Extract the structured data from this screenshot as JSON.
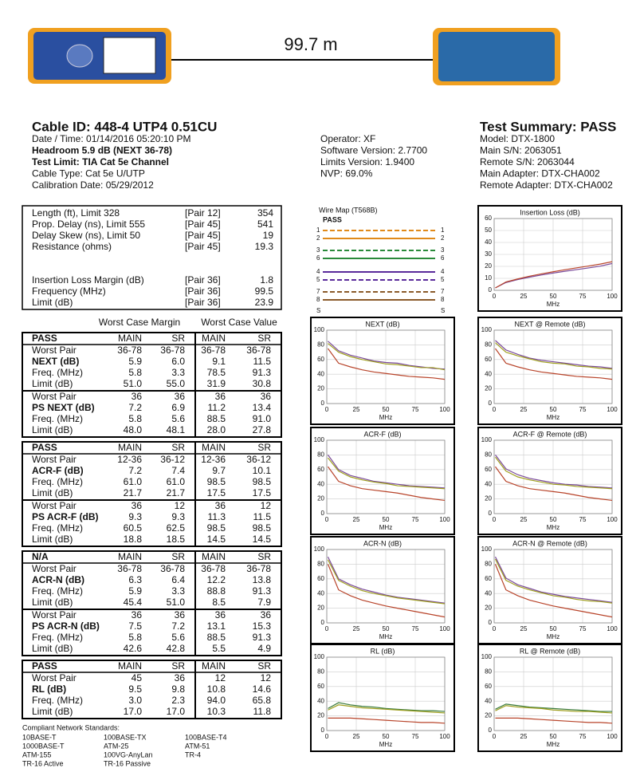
{
  "header": {
    "distance": "99.7 m",
    "cable_id": "Cable ID: 448-4 UTP4 0.51CU",
    "left_lines": [
      "Date / Time: 01/14/2016 05:20:10 PM",
      "Headroom 5.9 dB (NEXT 36-78)",
      "Test Limit: TIA Cat 5e Channel",
      "Cable Type: Cat 5e U/UTP",
      "Calibration Date: 05/29/2012"
    ],
    "middle_lines": [
      "Operator: XF",
      "Software Version: 2.7700",
      "Limits Version: 1.9400",
      "NVP: 69.0%"
    ],
    "summary_title": "Test Summary: PASS",
    "right_lines": [
      "Model: DTX-1800",
      "Main S/N: 2063051",
      "Remote S/N: 2063044",
      "Main Adapter: DTX-CHA002",
      "Remote Adapter: DTX-CHA002"
    ]
  },
  "length_table": {
    "groups": [
      [
        [
          "Length (ft), Limit 328",
          "[Pair 12]",
          "354"
        ],
        [
          "Prop. Delay (ns), Limit 555",
          "[Pair 45]",
          "541"
        ],
        [
          "Delay Skew (ns), Limit 50",
          "[Pair 45]",
          "19"
        ],
        [
          "Resistance (ohms)",
          "[Pair 45]",
          "19.3"
        ]
      ],
      [
        [
          "Insertion Loss Margin (dB)",
          "[Pair 36]",
          "1.8"
        ],
        [
          "Frequency (MHz)",
          "[Pair 36]",
          "99.5"
        ],
        [
          "Limit (dB)",
          "[Pair 36]",
          "23.9"
        ]
      ]
    ]
  },
  "wire_map": {
    "title": "Wire Map (T568B)",
    "status": "PASS",
    "pins": [
      "1",
      "2",
      "3",
      "6",
      "4",
      "5",
      "7",
      "8",
      "S"
    ]
  },
  "worst_case": {
    "headers": [
      "Worst Case Margin",
      "Worst Case Value"
    ],
    "columns": [
      "MAIN",
      "SR",
      "MAIN",
      "SR"
    ],
    "sections": [
      {
        "status": "PASS",
        "groups": [
          [
            [
              "Worst Pair",
              "36-78",
              "36-78",
              "36-78",
              "36-78"
            ],
            [
              "NEXT (dB)",
              "5.9",
              "6.0",
              "9.1",
              "11.5"
            ],
            [
              "Freq. (MHz)",
              "5.8",
              "3.3",
              "78.5",
              "91.3"
            ],
            [
              "Limit (dB)",
              "51.0",
              "55.0",
              "31.9",
              "30.8"
            ]
          ],
          [
            [
              "Worst Pair",
              "36",
              "36",
              "36",
              "36"
            ],
            [
              "PS NEXT (dB)",
              "7.2",
              "6.9",
              "11.2",
              "13.4"
            ],
            [
              "Freq. (MHz)",
              "5.8",
              "5.6",
              "88.5",
              "91.0"
            ],
            [
              "Limit (dB)",
              "48.0",
              "48.1",
              "28.0",
              "27.8"
            ]
          ]
        ]
      },
      {
        "status": "PASS",
        "groups": [
          [
            [
              "Worst Pair",
              "12-36",
              "36-12",
              "12-36",
              "36-12"
            ],
            [
              "ACR-F (dB)",
              "7.2",
              "7.4",
              "9.7",
              "10.1"
            ],
            [
              "Freq. (MHz)",
              "61.0",
              "61.0",
              "98.5",
              "98.5"
            ],
            [
              "Limit (dB)",
              "21.7",
              "21.7",
              "17.5",
              "17.5"
            ]
          ],
          [
            [
              "Worst Pair",
              "36",
              "12",
              "36",
              "12"
            ],
            [
              "PS ACR-F (dB)",
              "9.3",
              "9.3",
              "11.3",
              "11.5"
            ],
            [
              "Freq. (MHz)",
              "60.5",
              "62.5",
              "98.5",
              "98.5"
            ],
            [
              "Limit (dB)",
              "18.8",
              "18.5",
              "14.5",
              "14.5"
            ]
          ]
        ]
      },
      {
        "status": "N/A",
        "groups": [
          [
            [
              "Worst Pair",
              "36-78",
              "36-78",
              "36-78",
              "36-78"
            ],
            [
              "ACR-N (dB)",
              "6.3",
              "6.4",
              "12.2",
              "13.8"
            ],
            [
              "Freq. (MHz)",
              "5.9",
              "3.3",
              "88.8",
              "91.3"
            ],
            [
              "Limit (dB)",
              "45.4",
              "51.0",
              "8.5",
              "7.9"
            ]
          ],
          [
            [
              "Worst Pair",
              "36",
              "36",
              "36",
              "36"
            ],
            [
              "PS ACR-N (dB)",
              "7.5",
              "7.2",
              "13.1",
              "15.3"
            ],
            [
              "Freq. (MHz)",
              "5.8",
              "5.6",
              "88.5",
              "91.3"
            ],
            [
              "Limit (dB)",
              "42.6",
              "42.8",
              "5.5",
              "4.9"
            ]
          ]
        ]
      },
      {
        "status": "PASS",
        "groups": [
          [
            [
              "Worst Pair",
              "45",
              "36",
              "12",
              "12"
            ],
            [
              "RL (dB)",
              "9.5",
              "9.8",
              "10.8",
              "14.6"
            ],
            [
              "Freq. (MHz)",
              "3.0",
              "2.3",
              "94.0",
              "65.8"
            ],
            [
              "Limit (dB)",
              "17.0",
              "17.0",
              "10.3",
              "11.8"
            ]
          ]
        ]
      }
    ]
  },
  "standards": {
    "title": "Compliant Network Standards:",
    "items": [
      "10BASE-T",
      "100BASE-TX",
      "100BASE-T4",
      "1000BASE-T",
      "ATM-25",
      "ATM-51",
      "ATM-155",
      "100VG-AnyLan",
      "TR-4",
      "TR-16 Active",
      "TR-16 Passive"
    ]
  },
  "chart_data": [
    {
      "type": "line",
      "title": "Insertion Loss (dB)",
      "xlabel": "MHz",
      "x": [
        1,
        10,
        20,
        30,
        40,
        50,
        60,
        70,
        80,
        90,
        100
      ],
      "xlim": [
        0,
        100
      ],
      "ylim": [
        0,
        60
      ],
      "xticks": [
        0,
        25,
        50,
        75,
        100
      ],
      "yticks": [
        0,
        10,
        20,
        30,
        40,
        50,
        60
      ],
      "grid": true,
      "series": [
        {
          "color": "#7a4a9a",
          "values": [
            2,
            6.5,
            9,
            11,
            12.8,
            14.4,
            15.9,
            17.3,
            18.7,
            20.2,
            22.4
          ]
        },
        {
          "color": "#b8442a",
          "values": [
            2,
            7,
            9.5,
            11.8,
            13.7,
            15.5,
            17.2,
            18.8,
            20.3,
            21.9,
            23.9
          ]
        }
      ]
    },
    {
      "type": "line",
      "title": "NEXT (dB)",
      "xlabel": "MHz",
      "x": [
        1,
        10,
        20,
        30,
        40,
        50,
        60,
        70,
        80,
        90,
        100
      ],
      "xlim": [
        0,
        100
      ],
      "ylim": [
        0,
        100
      ],
      "xticks": [
        0,
        25,
        50,
        75,
        100
      ],
      "yticks": [
        0,
        20,
        40,
        60,
        80,
        100
      ],
      "grid": true,
      "series": [
        {
          "color": "#7a4a9a",
          "values": [
            85,
            72,
            66,
            62,
            58,
            56,
            55,
            52,
            50,
            48,
            47
          ]
        },
        {
          "color": "#a0a020",
          "values": [
            82,
            70,
            64,
            60,
            57,
            54,
            53,
            51,
            49,
            49,
            46
          ]
        },
        {
          "color": "#b8442a",
          "values": [
            75,
            55,
            50,
            46,
            43,
            41,
            39,
            37,
            36,
            35,
            33
          ]
        }
      ]
    },
    {
      "type": "line",
      "title": "NEXT @ Remote (dB)",
      "xlabel": "MHz",
      "x": [
        1,
        10,
        20,
        30,
        40,
        50,
        60,
        70,
        80,
        90,
        100
      ],
      "xlim": [
        0,
        100
      ],
      "ylim": [
        0,
        100
      ],
      "xticks": [
        0,
        25,
        50,
        75,
        100
      ],
      "yticks": [
        0,
        20,
        40,
        60,
        80,
        100
      ],
      "grid": true,
      "series": [
        {
          "color": "#7a4a9a",
          "values": [
            86,
            73,
            67,
            62,
            59,
            57,
            55,
            53,
            51,
            50,
            48
          ]
        },
        {
          "color": "#a0a020",
          "values": [
            83,
            70,
            65,
            61,
            57,
            55,
            54,
            51,
            50,
            48,
            47
          ]
        },
        {
          "color": "#b8442a",
          "values": [
            75,
            55,
            50,
            46,
            43,
            41,
            39,
            37,
            36,
            35,
            33
          ]
        }
      ]
    },
    {
      "type": "line",
      "title": "ACR-F (dB)",
      "xlabel": "MHz",
      "x": [
        1,
        10,
        20,
        30,
        40,
        50,
        60,
        70,
        80,
        90,
        100
      ],
      "xlim": [
        0,
        100
      ],
      "ylim": [
        0,
        100
      ],
      "xticks": [
        0,
        25,
        50,
        75,
        100
      ],
      "yticks": [
        0,
        20,
        40,
        60,
        80,
        100
      ],
      "grid": true,
      "series": [
        {
          "color": "#7a4a9a",
          "values": [
            80,
            60,
            52,
            48,
            44,
            42,
            40,
            38,
            37,
            36,
            35
          ]
        },
        {
          "color": "#a0a020",
          "values": [
            76,
            58,
            50,
            46,
            43,
            41,
            38,
            37,
            36,
            35,
            34
          ]
        },
        {
          "color": "#b8442a",
          "values": [
            64,
            44,
            38,
            34,
            32,
            30,
            28,
            25,
            22,
            20,
            18
          ]
        }
      ]
    },
    {
      "type": "line",
      "title": "ACR-F @ Remote (dB)",
      "xlabel": "MHz",
      "x": [
        1,
        10,
        20,
        30,
        40,
        50,
        60,
        70,
        80,
        90,
        100
      ],
      "xlim": [
        0,
        100
      ],
      "ylim": [
        0,
        100
      ],
      "xticks": [
        0,
        25,
        50,
        75,
        100
      ],
      "yticks": [
        0,
        20,
        40,
        60,
        80,
        100
      ],
      "grid": true,
      "series": [
        {
          "color": "#7a4a9a",
          "values": [
            80,
            61,
            53,
            48,
            45,
            42,
            40,
            39,
            37,
            36,
            35
          ]
        },
        {
          "color": "#a0a020",
          "values": [
            77,
            58,
            50,
            46,
            43,
            40,
            39,
            37,
            36,
            35,
            34
          ]
        },
        {
          "color": "#b8442a",
          "values": [
            64,
            44,
            38,
            34,
            32,
            30,
            28,
            25,
            22,
            20,
            18
          ]
        }
      ]
    },
    {
      "type": "line",
      "title": "ACR-N (dB)",
      "xlabel": "MHz",
      "x": [
        1,
        10,
        20,
        30,
        40,
        50,
        60,
        70,
        80,
        90,
        100
      ],
      "xlim": [
        0,
        100
      ],
      "ylim": [
        0,
        100
      ],
      "xticks": [
        0,
        25,
        50,
        75,
        100
      ],
      "yticks": [
        0,
        20,
        40,
        60,
        80,
        100
      ],
      "grid": true,
      "series": [
        {
          "color": "#7a4a9a",
          "values": [
            90,
            60,
            52,
            46,
            42,
            38,
            35,
            33,
            31,
            29,
            27
          ]
        },
        {
          "color": "#a0a020",
          "values": [
            86,
            58,
            50,
            44,
            40,
            37,
            34,
            32,
            30,
            28,
            26
          ]
        },
        {
          "color": "#b8442a",
          "values": [
            80,
            45,
            37,
            31,
            27,
            23,
            20,
            17,
            14,
            11,
            8
          ]
        }
      ]
    },
    {
      "type": "line",
      "title": "ACR-N @ Remote (dB)",
      "xlabel": "MHz",
      "x": [
        1,
        10,
        20,
        30,
        40,
        50,
        60,
        70,
        80,
        90,
        100
      ],
      "xlim": [
        0,
        100
      ],
      "ylim": [
        0,
        100
      ],
      "xticks": [
        0,
        25,
        50,
        75,
        100
      ],
      "yticks": [
        0,
        20,
        40,
        60,
        80,
        100
      ],
      "grid": true,
      "series": [
        {
          "color": "#7a4a9a",
          "values": [
            90,
            61,
            52,
            47,
            42,
            39,
            36,
            34,
            32,
            30,
            28
          ]
        },
        {
          "color": "#a0a020",
          "values": [
            87,
            58,
            50,
            45,
            41,
            37,
            35,
            32,
            30,
            29,
            27
          ]
        },
        {
          "color": "#b8442a",
          "values": [
            80,
            45,
            37,
            31,
            27,
            23,
            20,
            17,
            14,
            11,
            8
          ]
        }
      ]
    },
    {
      "type": "line",
      "title": "RL (dB)",
      "xlabel": "MHz",
      "x": [
        1,
        10,
        20,
        30,
        40,
        50,
        60,
        70,
        80,
        90,
        100
      ],
      "xlim": [
        0,
        100
      ],
      "ylim": [
        0,
        100
      ],
      "xticks": [
        0,
        25,
        50,
        75,
        100
      ],
      "yticks": [
        0,
        20,
        40,
        60,
        80,
        100
      ],
      "grid": true,
      "series": [
        {
          "color": "#3a7a3a",
          "values": [
            30,
            38,
            35,
            33,
            32,
            30,
            29,
            28,
            27,
            27,
            26
          ]
        },
        {
          "color": "#a0a020",
          "values": [
            28,
            35,
            33,
            31,
            30,
            29,
            28,
            27,
            26,
            25,
            24
          ]
        },
        {
          "color": "#b8442a",
          "values": [
            17,
            17,
            17,
            16,
            15,
            14,
            13,
            12,
            11,
            11,
            10
          ]
        }
      ]
    },
    {
      "type": "line",
      "title": "RL @ Remote (dB)",
      "xlabel": "MHz",
      "x": [
        1,
        10,
        20,
        30,
        40,
        50,
        60,
        70,
        80,
        90,
        100
      ],
      "xlim": [
        0,
        100
      ],
      "ylim": [
        0,
        100
      ],
      "xticks": [
        0,
        25,
        50,
        75,
        100
      ],
      "yticks": [
        0,
        20,
        40,
        60,
        80,
        100
      ],
      "grid": true,
      "series": [
        {
          "color": "#3a7a3a",
          "values": [
            29,
            36,
            34,
            32,
            31,
            30,
            29,
            28,
            27,
            26,
            26
          ]
        },
        {
          "color": "#a0a020",
          "values": [
            27,
            34,
            32,
            31,
            30,
            28,
            27,
            26,
            26,
            25,
            24
          ]
        },
        {
          "color": "#b8442a",
          "values": [
            17,
            17,
            17,
            16,
            15,
            14,
            13,
            12,
            11,
            11,
            10
          ]
        }
      ]
    }
  ]
}
